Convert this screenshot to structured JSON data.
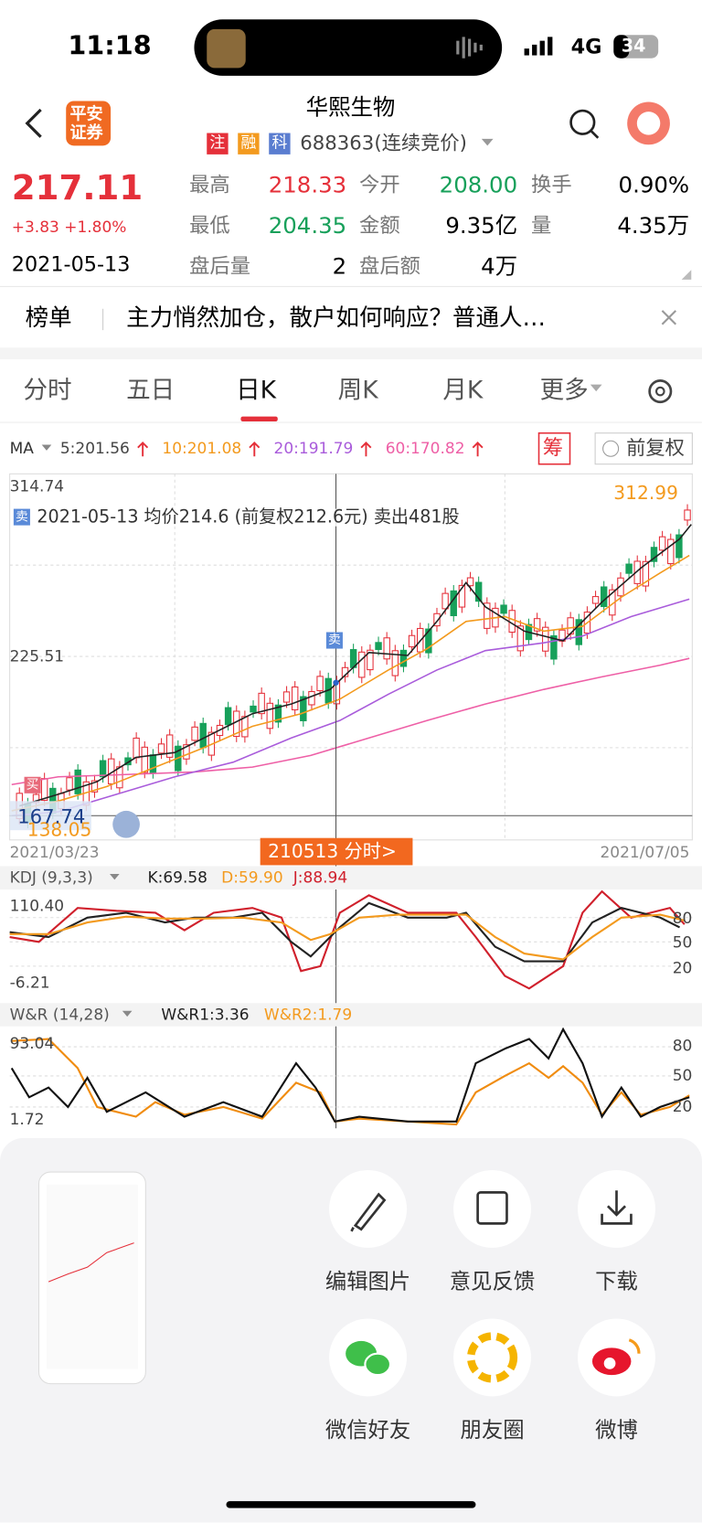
{
  "status_bar": {
    "time": "11:18",
    "network": "4G",
    "battery": "34"
  },
  "header": {
    "logo_lines": [
      "平安",
      "证券"
    ],
    "title": "华熙生物",
    "tags": [
      "注",
      "融",
      "科"
    ],
    "code": "688363(连续竞价)"
  },
  "quote": {
    "price": "217.11",
    "change": "+3.83 +1.80%",
    "date": "2021-05-13",
    "fields": [
      {
        "label": "最高",
        "value": "218.33"
      },
      {
        "label": "今开",
        "value": "208.00"
      },
      {
        "label": "换手",
        "value": "0.90%"
      },
      {
        "label": "最低",
        "value": "204.35"
      },
      {
        "label": "金额",
        "value": "9.35亿"
      },
      {
        "label": "量",
        "value": "4.35万"
      },
      {
        "label": "盘后量",
        "value": "2"
      },
      {
        "label": "盘后额",
        "value": "4万"
      }
    ]
  },
  "news": {
    "tag": "榜单",
    "headline": "主力悄然加仓，散户如何响应？普通人…"
  },
  "tabs": [
    "分时",
    "五日",
    "日K",
    "周K",
    "月K",
    "更多"
  ],
  "indicator": {
    "ma_label": "MA",
    "ma_values": [
      "5:201.56",
      "10:201.08",
      "20:191.79",
      "60:170.82"
    ],
    "chip": "筹",
    "adjust": "前复权"
  },
  "kline": {
    "axis_top": "314.74",
    "axis_mid": "225.51",
    "max_label": "312.99",
    "low_label": "167.74",
    "low_label_behind": "138.05",
    "annotation_icon": "卖",
    "annotation": "2021-05-13 均价214.6 (前复权212.6元) 卖出481股",
    "sell_marker": "卖",
    "buy_marker": "买",
    "start_date": "2021/03/23",
    "end_date": "2021/07/05",
    "button": "210513 分时>"
  },
  "kdj": {
    "name": "KDJ (9,3,3)",
    "values": [
      "K:69.58",
      "D:59.90",
      "J:88.94"
    ],
    "axis_top": "110.40",
    "axis_bottom": "-6.21",
    "levels": [
      "80",
      "50",
      "20"
    ]
  },
  "wr": {
    "name": "W&R (14,28)",
    "values": [
      "W&R1:3.36",
      "W&R2:1.79"
    ],
    "axis_top": "93.04",
    "axis_bottom": "1.72",
    "levels": [
      "80",
      "50",
      "20"
    ]
  },
  "share": {
    "actions": [
      "编辑图片",
      "意见反馈",
      "下载",
      "微信好友",
      "朋友圈",
      "微博"
    ]
  }
}
